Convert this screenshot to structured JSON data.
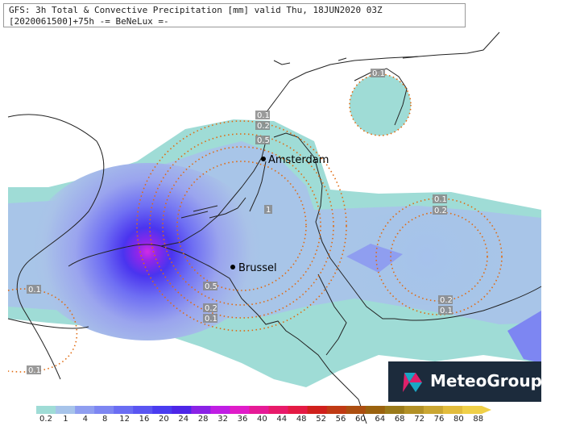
{
  "header": {
    "line1": "GFS: 3h Total & Convective Precipitation [mm] valid Thu, 18JUN2020 03Z",
    "line2": "[2020061500]+75h -= BeNeLux =-"
  },
  "cities": [
    {
      "name": "Amsterdam"
    },
    {
      "name": "Brussel"
    }
  ],
  "contour_labels": [
    "0.1",
    "0.2",
    "0.5",
    "1",
    "0.5",
    "0.2",
    "0.1",
    "0.1",
    "0.2",
    "0.2",
    "0.1",
    "0.1",
    "0.1",
    "0.1"
  ],
  "legend": {
    "ticks": [
      "0.2",
      "1",
      "4",
      "8",
      "12",
      "16",
      "20",
      "24",
      "28",
      "32",
      "36",
      "40",
      "44",
      "48",
      "52",
      "56",
      "60",
      "64",
      "68",
      "72",
      "76",
      "80",
      "88"
    ],
    "colors": [
      "#9fdcd6",
      "#a7c4ea",
      "#8f9ef0",
      "#7d86f2",
      "#6a6df3",
      "#5a55f2",
      "#4a3cf0",
      "#4d26e8",
      "#8a22e6",
      "#c01ee4",
      "#e01cc9",
      "#e61a96",
      "#e81a6a",
      "#e41a44",
      "#d0201c",
      "#c03a14",
      "#ac4e10",
      "#9a620e",
      "#9a7a1a",
      "#b29026",
      "#caa632",
      "#e2bc3c",
      "#f0d048"
    ]
  },
  "branding": {
    "logo_text": "MeteoGroup"
  },
  "colors": {
    "contour": "#e06a10",
    "border": "#222222",
    "light_precip": "#9fdcd6"
  }
}
